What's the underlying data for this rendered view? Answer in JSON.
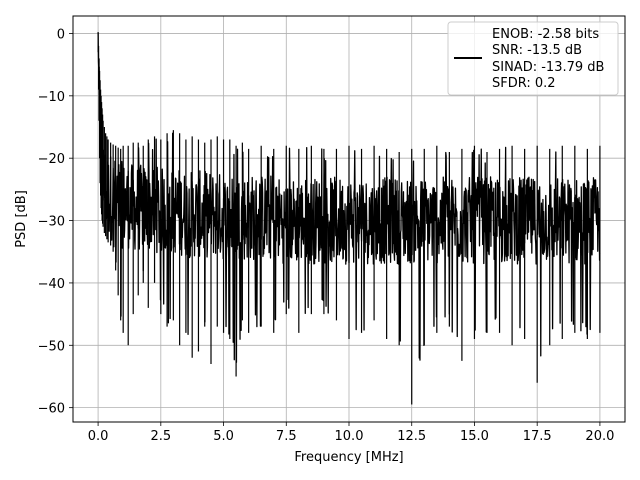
{
  "chart_data": {
    "type": "line",
    "title": "",
    "xlabel": "Frequency [MHz]",
    "ylabel": "PSD [dB]",
    "xlim": [
      -1.0,
      21.0
    ],
    "ylim": [
      -62.3,
      2.8
    ],
    "xticks": [
      0.0,
      2.5,
      5.0,
      7.5,
      10.0,
      12.5,
      15.0,
      17.5,
      20.0
    ],
    "xtick_labels": [
      "0.0",
      "2.5",
      "5.0",
      "7.5",
      "10.0",
      "12.5",
      "15.0",
      "17.5",
      "20.0"
    ],
    "yticks": [
      0,
      -10,
      -20,
      -30,
      -40,
      -50,
      -60
    ],
    "ytick_labels": [
      "0",
      "−10",
      "−20",
      "−30",
      "−40",
      "−50",
      "−60"
    ],
    "grid": true,
    "legend_position": "top-right",
    "series": [
      {
        "color": "#000000",
        "legend_lines": [
          "ENOB: -2.58 bits",
          "SNR: -13.5 dB",
          "SINAD: -13.79 dB",
          "SFDR: 0.2"
        ],
        "x": [
          0.0,
          0.02,
          0.04,
          0.06,
          0.08,
          0.1,
          0.12,
          0.14,
          0.16,
          0.18,
          0.2,
          0.25,
          0.3,
          0.35,
          0.4,
          0.5,
          0.6,
          0.7,
          0.8,
          0.9,
          1.0,
          1.2,
          1.4,
          1.6,
          1.8,
          2.0,
          2.25,
          2.5,
          2.75,
          3.0,
          3.25,
          3.5,
          3.75,
          4.0,
          4.25,
          4.5,
          4.75,
          5.0,
          5.25,
          5.5,
          5.75,
          6.0,
          6.5,
          7.0,
          7.5,
          8.0,
          8.5,
          9.0,
          9.5,
          10.0,
          10.5,
          11.0,
          11.5,
          12.0,
          12.5,
          13.0,
          13.5,
          14.0,
          14.5,
          15.0,
          15.5,
          16.0,
          16.5,
          17.0,
          17.5,
          18.0,
          18.5,
          19.0,
          19.5,
          20.0
        ],
        "y_max": [
          0.2,
          -2.0,
          -4.0,
          -6.0,
          -7.5,
          -9.0,
          -10.0,
          -11.0,
          -12.0,
          -13.0,
          -14.0,
          -15.0,
          -16.0,
          -16.5,
          -17.0,
          -17.5,
          -17.8,
          -18.0,
          -18.3,
          -18.5,
          -18.0,
          -18.0,
          -17.5,
          -17.5,
          -18.0,
          -17.0,
          -16.5,
          -17.0,
          -16.0,
          -15.5,
          -16.0,
          -17.0,
          -16.5,
          -17.0,
          -17.5,
          -17.0,
          -16.5,
          -17.0,
          -17.0,
          -18.0,
          -17.5,
          -18.5,
          -18.0,
          -18.5,
          -18.0,
          -18.5,
          -18.0,
          -18.5,
          -18.5,
          -18.0,
          -18.5,
          -18.0,
          -18.5,
          -19.0,
          -18.5,
          -18.5,
          -18.0,
          -19.0,
          -18.5,
          -18.0,
          -19.0,
          -18.5,
          -18.0,
          -18.5,
          -18.0,
          -18.5,
          -18.0,
          -18.0,
          -18.5,
          -18.0
        ],
        "y_min": [
          -3.0,
          -9.0,
          -14.0,
          -20.0,
          -24.0,
          -26.0,
          -28.0,
          -29.0,
          -30.0,
          -30.5,
          -31.0,
          -32.0,
          -32.5,
          -33.0,
          -33.5,
          -34.0,
          -35.0,
          -38.0,
          -42.0,
          -46.0,
          -48.0,
          -50.0,
          -45.0,
          -42.0,
          -40.0,
          -44.0,
          -40.0,
          -45.0,
          -47.0,
          -46.0,
          -50.0,
          -48.0,
          -52.0,
          -51.0,
          -47.0,
          -53.0,
          -47.0,
          -48.0,
          -49.0,
          -55.0,
          -46.0,
          -48.0,
          -47.0,
          -48.0,
          -45.0,
          -48.0,
          -45.0,
          -45.0,
          -46.0,
          -49.0,
          -48.0,
          -46.0,
          -49.0,
          -50.0,
          -59.5,
          -50.0,
          -48.0,
          -47.0,
          -52.5,
          -49.0,
          -48.0,
          -48.0,
          -50.0,
          -49.0,
          -56.0,
          -50.0,
          -49.0,
          -48.0,
          -49.0,
          -48.0
        ],
        "y_center": [
          0.0,
          -5.0,
          -9.0,
          -13.0,
          -16.0,
          -17.5,
          -19.0,
          -20.0,
          -21.0,
          -22.0,
          -23.0,
          -24.0,
          -25.0,
          -25.5,
          -26.0,
          -26.0,
          -26.5,
          -27.0,
          -27.0,
          -27.5,
          -27.5,
          -27.5,
          -28.0,
          -28.0,
          -28.0,
          -28.0,
          -28.0,
          -28.5,
          -28.5,
          -28.5,
          -28.5,
          -29.0,
          -29.0,
          -29.0,
          -29.0,
          -29.0,
          -29.0,
          -29.5,
          -29.5,
          -29.5,
          -29.5,
          -29.5,
          -29.5,
          -29.5,
          -30.0,
          -30.0,
          -30.0,
          -30.0,
          -30.0,
          -30.0,
          -30.0,
          -30.0,
          -30.0,
          -30.0,
          -30.0,
          -30.0,
          -30.0,
          -30.0,
          -30.0,
          -30.0,
          -30.0,
          -30.0,
          -30.0,
          -30.0,
          -30.0,
          -30.0,
          -30.0,
          -30.0,
          -30.0,
          -30.0
        ]
      }
    ]
  }
}
